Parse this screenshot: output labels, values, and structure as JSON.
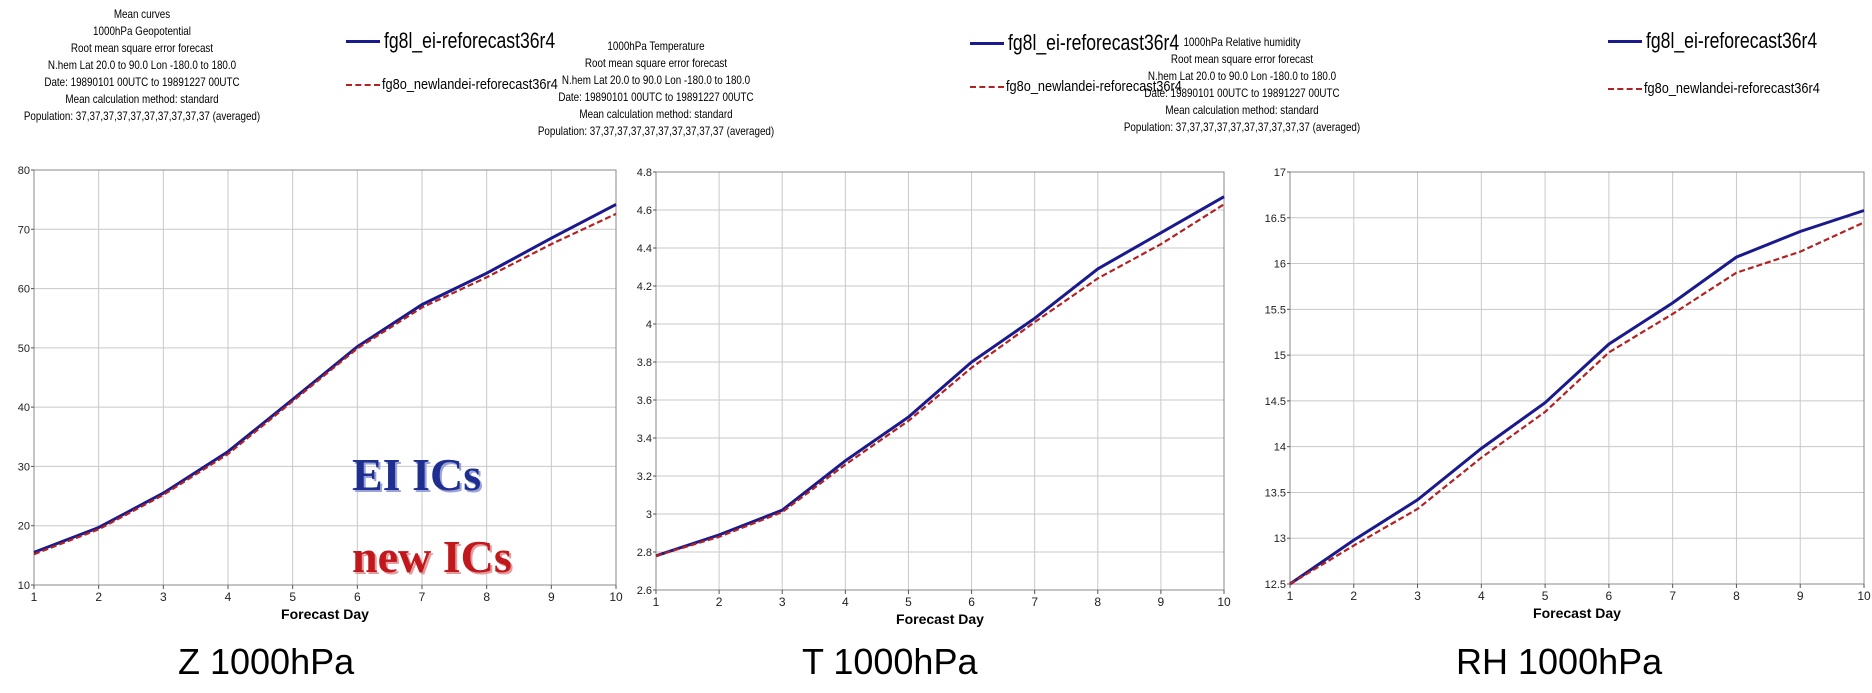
{
  "panels": [
    {
      "meta": {
        "lines": [
          "Mean curves",
          "1000hPa Geopotential",
          "Root mean square error forecast",
          "N.hem  Lat  20.0 to 90.0 Lon  -180.0 to  180.0",
          "Date: 19890101 00UTC to 19891227 00UTC",
          "Mean calculation method: standard",
          "Population: 37,37,37,37,37,37,37,37,37,37 (averaged)"
        ]
      },
      "legend": {
        "series1": "fg8l_ei-reforecast36r4",
        "series2": "fg8o_newlandei-reforecast36r4"
      },
      "caption": "Z 1000hPa",
      "annotation": {
        "line1": "EI ICs",
        "line2": "new ICs"
      }
    },
    {
      "meta": {
        "lines": [
          "1000hPa Temperature",
          "Root mean square error forecast",
          "N.hem  Lat  20.0 to 90.0 Lon  -180.0 to  180.0",
          "Date: 19890101 00UTC to 19891227 00UTC",
          "Mean calculation method: standard",
          "Population: 37,37,37,37,37,37,37,37,37,37 (averaged)"
        ]
      },
      "legend": {
        "series1": "fg8l_ei-reforecast36r4",
        "series2": "fg8o_newlandei-reforecast36r4"
      },
      "caption": "T 1000hPa"
    },
    {
      "meta": {
        "lines": [
          "1000hPa Relative humidity",
          "Root mean square error forecast",
          "N.hem  Lat  20.0 to 90.0 Lon  -180.0 to  180.0",
          "Date: 19890101 00UTC to 19891227 00UTC",
          "Mean calculation method: standard",
          "Population: 37,37,37,37,37,37,37,37,37,37 (averaged)"
        ]
      },
      "legend": {
        "series1": "fg8l_ei-reforecast36r4",
        "series2": "fg8o_newlandei-reforecast36r4"
      },
      "caption": "RH 1000hPa"
    }
  ],
  "colors": {
    "series1": "#1a1a8c",
    "series2": "#b22222",
    "grid": "#c8c8c8",
    "annotation_ei": "#1f2f8f",
    "annotation_new": "#c0181c"
  },
  "chart_data": [
    {
      "type": "line",
      "xlabel": "Forecast Day",
      "ylabel": "",
      "xlim": [
        1,
        10
      ],
      "ylim": [
        10,
        80
      ],
      "x_ticks": [
        1,
        2,
        3,
        4,
        5,
        6,
        7,
        8,
        9,
        10
      ],
      "y_ticks": [
        10,
        20,
        30,
        40,
        50,
        60,
        70,
        80
      ],
      "x": [
        1,
        2,
        3,
        4,
        5,
        6,
        7,
        8,
        9,
        10
      ],
      "series": [
        {
          "name": "fg8l_ei-reforecast36r4",
          "values": [
            15.5,
            19.7,
            25.5,
            32.5,
            41.3,
            50.2,
            57.3,
            62.6,
            68.5,
            74.2
          ]
        },
        {
          "name": "fg8o_newlandei-reforecast36r4",
          "values": [
            15.2,
            19.4,
            25.2,
            32.1,
            41.0,
            49.9,
            56.8,
            61.9,
            67.5,
            72.6
          ]
        }
      ]
    },
    {
      "type": "line",
      "xlabel": "Forecast Day",
      "ylabel": "",
      "xlim": [
        1,
        10
      ],
      "ylim": [
        2.6,
        4.8
      ],
      "x_ticks": [
        1,
        2,
        3,
        4,
        5,
        6,
        7,
        8,
        9,
        10
      ],
      "y_ticks": [
        2.6,
        2.8,
        3,
        3.2,
        3.4,
        3.6,
        3.8,
        4,
        4.2,
        4.4,
        4.6,
        4.8
      ],
      "x": [
        1,
        2,
        3,
        4,
        5,
        6,
        7,
        8,
        9,
        10
      ],
      "series": [
        {
          "name": "fg8l_ei-reforecast36r4",
          "values": [
            2.78,
            2.89,
            3.02,
            3.28,
            3.51,
            3.8,
            4.03,
            4.29,
            4.48,
            4.67
          ]
        },
        {
          "name": "fg8o_newlandei-reforecast36r4",
          "values": [
            2.78,
            2.88,
            3.01,
            3.26,
            3.49,
            3.77,
            4.01,
            4.24,
            4.42,
            4.63
          ]
        }
      ]
    },
    {
      "type": "line",
      "xlabel": "Forecast Day",
      "ylabel": "",
      "xlim": [
        1,
        10
      ],
      "ylim": [
        12.5,
        17
      ],
      "x_ticks": [
        1,
        2,
        3,
        4,
        5,
        6,
        7,
        8,
        9,
        10
      ],
      "y_ticks": [
        12.5,
        13,
        13.5,
        14,
        14.5,
        15,
        15.5,
        16,
        16.5,
        17
      ],
      "x": [
        1,
        2,
        3,
        4,
        5,
        6,
        7,
        8,
        9,
        10
      ],
      "series": [
        {
          "name": "fg8l_ei-reforecast36r4",
          "values": [
            12.5,
            12.98,
            13.42,
            13.98,
            14.48,
            15.12,
            15.57,
            16.07,
            16.35,
            16.58
          ]
        },
        {
          "name": "fg8o_newlandei-reforecast36r4",
          "values": [
            12.5,
            12.92,
            13.32,
            13.88,
            14.38,
            15.03,
            15.45,
            15.9,
            16.13,
            16.45
          ]
        }
      ]
    }
  ]
}
